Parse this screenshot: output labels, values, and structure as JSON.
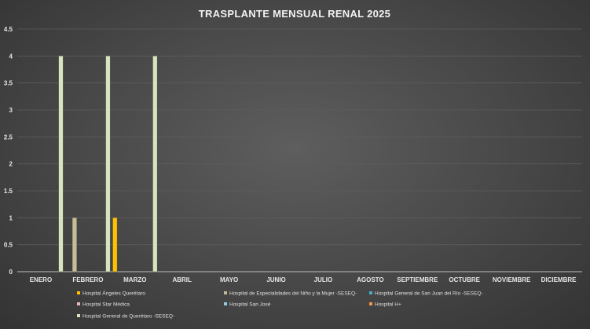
{
  "chart_data": {
    "type": "bar",
    "title": "TRASPLANTE MENSUAL RENAL 2025",
    "categories": [
      "ENERO",
      "FEBRERO",
      "MARZO",
      "ABRIL",
      "MAYO",
      "JUNIO",
      "JULIO",
      "AGOSTO",
      "SEPTIEMBRE",
      "OCTUBRE",
      "NOVIEMBRE",
      "DICIEMBRE"
    ],
    "ylim": [
      0,
      4.5
    ],
    "yticks": [
      "0",
      "0.5",
      "1",
      "1.5",
      "2",
      "2.5",
      "3",
      "3.5",
      "4",
      "4.5"
    ],
    "grid": true,
    "legend_position": "bottom",
    "series": [
      {
        "name": "Hospital Ángeles Querétaro",
        "color": "#ffc000",
        "values": [
          0,
          0,
          1,
          0,
          0,
          0,
          0,
          0,
          0,
          0,
          0,
          0
        ]
      },
      {
        "name": "Hospital de Especialidades del Niño y la Mujer -SESEQ-",
        "color": "#c4bd97",
        "values": [
          0,
          1,
          0,
          0,
          0,
          0,
          0,
          0,
          0,
          0,
          0,
          0
        ]
      },
      {
        "name": "Hospital General de San Juan del Río -SESEQ-",
        "color": "#4bacc6",
        "values": [
          0,
          0,
          0,
          0,
          0,
          0,
          0,
          0,
          0,
          0,
          0,
          0
        ]
      },
      {
        "name": "Hospital Star Médica",
        "color": "#e6b9b8",
        "values": [
          0,
          0,
          0,
          0,
          0,
          0,
          0,
          0,
          0,
          0,
          0,
          0
        ]
      },
      {
        "name": "Hospital San José",
        "color": "#93cddd",
        "values": [
          0,
          0,
          0,
          0,
          0,
          0,
          0,
          0,
          0,
          0,
          0,
          0
        ]
      },
      {
        "name": "Hospital H+",
        "color": "#f79646",
        "values": [
          0,
          0,
          0,
          0,
          0,
          0,
          0,
          0,
          0,
          0,
          0,
          0
        ]
      },
      {
        "name": "Hospital General de Querétaro -SESEQ-",
        "color": "#d7e4bd",
        "values": [
          4,
          4,
          4,
          0,
          0,
          0,
          0,
          0,
          0,
          0,
          0,
          0
        ]
      }
    ]
  }
}
